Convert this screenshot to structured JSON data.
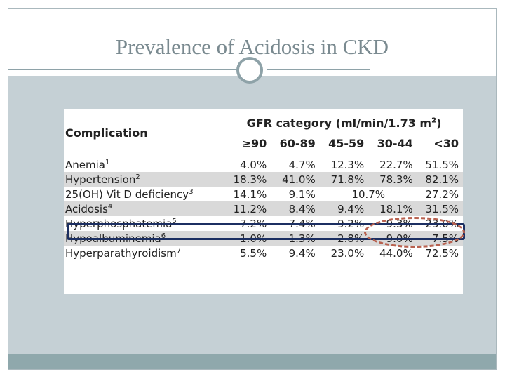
{
  "slide": {
    "title": "Prevalence of Acidosis in CKD"
  },
  "table": {
    "header": {
      "complication": "Complication",
      "gfr_label": "GFR category (ml/min/1.73 m",
      "gfr_sup": "2",
      "gfr_close": ")",
      "categories": [
        "≥90",
        "60-89",
        "45-59",
        "30-44",
        "<30"
      ]
    },
    "rows": [
      {
        "name": "Anemia",
        "sup": "1",
        "values": [
          "4.0%",
          "4.7%",
          "12.3%",
          "22.7%",
          "51.5%"
        ],
        "shaded": false
      },
      {
        "name": "Hypertension",
        "sup": "2",
        "values": [
          "18.3%",
          "41.0%",
          "71.8%",
          "78.3%",
          "82.1%"
        ],
        "shaded": true
      },
      {
        "name": "25(OH) Vit D deficiency",
        "sup": "3",
        "values": [
          "14.1%",
          "9.1%",
          "10.7%",
          "27.2%"
        ],
        "shaded": false
      },
      {
        "name": "Acidosis",
        "sup": "4",
        "values": [
          "11.2%",
          "8.4%",
          "9.4%",
          "18.1%",
          "31.5%"
        ],
        "shaded": true
      },
      {
        "name": "Hyperphosphatemia",
        "sup": "5",
        "values": [
          "7.2%",
          "7.4%",
          "9.2%",
          "9.3%",
          "23.0%"
        ],
        "shaded": false
      },
      {
        "name": "Hypoalbuminemia",
        "sup": "6",
        "values": [
          "1.0%",
          "1.3%",
          "2.8%",
          "9.0%",
          "7.5%"
        ],
        "shaded": true
      },
      {
        "name": "Hyperparathyroidism",
        "sup": "7",
        "values": [
          "5.5%",
          "9.4%",
          "23.0%",
          "44.0%",
          "72.5%"
        ],
        "shaded": false
      }
    ]
  },
  "colors": {
    "highlight_box": "#1c2f62",
    "highlight_ellipse": "#b8614f",
    "body_background": "#c5d0d5",
    "bottom_band": "#8fa8ac"
  }
}
